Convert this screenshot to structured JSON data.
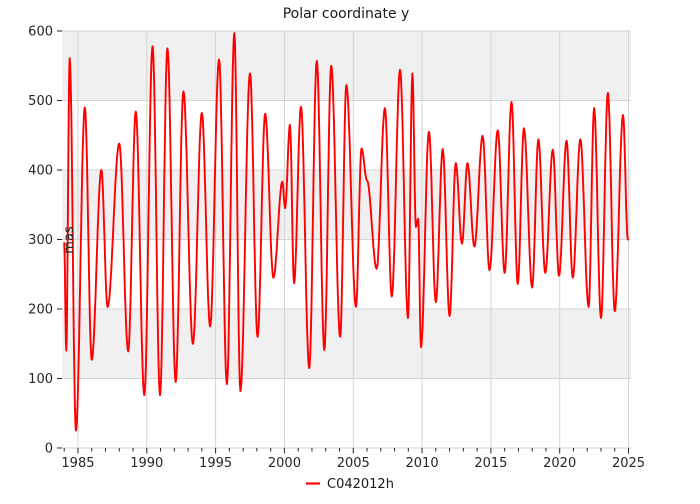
{
  "title": "Polar coordinate y",
  "colors": {
    "line": "#ff0000",
    "band": "#f0f0f0",
    "grid": "#d4d4d4",
    "tick": "#262626",
    "text": "#262626",
    "plot_bg": "#ffffff",
    "page_bg": "#ffffff"
  },
  "legend": {
    "label": "C042012h",
    "position": "bottom-center"
  },
  "chart_data": {
    "type": "line",
    "title": "Polar coordinate y",
    "xlabel": "",
    "ylabel": "mas",
    "xlim": [
      1983.84,
      2025.18
    ],
    "ylim": [
      0,
      600
    ],
    "xticks": [
      1985,
      1990,
      1995,
      2000,
      2005,
      2010,
      2015,
      2020,
      2025
    ],
    "xtick_minor_step": 1,
    "yticks": [
      0,
      100,
      200,
      300,
      400,
      500,
      600
    ],
    "grid": true,
    "background_bands": [
      [
        100,
        200
      ],
      [
        300,
        400
      ],
      [
        500,
        600
      ]
    ],
    "legend_position": "bottom-center",
    "series": [
      {
        "name": "C042012h",
        "color": "#ff0000",
        "line_width": 1.9,
        "interpolation": "cosine-between-extrema",
        "extrema": [
          [
            1984.0,
            295
          ],
          [
            1984.15,
            140
          ],
          [
            1984.4,
            561
          ],
          [
            1984.85,
            25
          ],
          [
            1985.5,
            490
          ],
          [
            1986.0,
            127
          ],
          [
            1986.7,
            400
          ],
          [
            1987.15,
            203
          ],
          [
            1988.0,
            438
          ],
          [
            1988.65,
            139
          ],
          [
            1989.2,
            484
          ],
          [
            1989.82,
            76
          ],
          [
            1990.42,
            578
          ],
          [
            1990.96,
            76
          ],
          [
            1991.5,
            575
          ],
          [
            1992.1,
            95
          ],
          [
            1992.66,
            513
          ],
          [
            1993.35,
            150
          ],
          [
            1994.0,
            482
          ],
          [
            1994.6,
            175
          ],
          [
            1995.25,
            559
          ],
          [
            1995.82,
            92
          ],
          [
            1996.36,
            597
          ],
          [
            1996.8,
            82
          ],
          [
            1997.5,
            539
          ],
          [
            1998.05,
            160
          ],
          [
            1998.6,
            481
          ],
          [
            1999.2,
            245
          ],
          [
            1999.85,
            383
          ],
          [
            2000.05,
            345
          ],
          [
            2000.4,
            465
          ],
          [
            2000.7,
            237
          ],
          [
            2001.2,
            491
          ],
          [
            2001.8,
            115
          ],
          [
            2002.35,
            557
          ],
          [
            2002.9,
            141
          ],
          [
            2003.4,
            550
          ],
          [
            2004.05,
            160
          ],
          [
            2004.5,
            522
          ],
          [
            2005.2,
            203
          ],
          [
            2005.6,
            431
          ],
          [
            2006.0,
            385
          ],
          [
            2006.7,
            258
          ],
          [
            2007.3,
            489
          ],
          [
            2007.8,
            218
          ],
          [
            2008.4,
            544
          ],
          [
            2008.98,
            187
          ],
          [
            2009.3,
            539
          ],
          [
            2009.55,
            318
          ],
          [
            2009.72,
            330
          ],
          [
            2009.92,
            145
          ],
          [
            2010.5,
            455
          ],
          [
            2011.0,
            210
          ],
          [
            2011.5,
            430
          ],
          [
            2012.0,
            190
          ],
          [
            2012.45,
            410
          ],
          [
            2012.9,
            294
          ],
          [
            2013.3,
            410
          ],
          [
            2013.8,
            290
          ],
          [
            2014.4,
            449
          ],
          [
            2014.9,
            256
          ],
          [
            2015.5,
            457
          ],
          [
            2016.0,
            252
          ],
          [
            2016.5,
            498
          ],
          [
            2016.95,
            236
          ],
          [
            2017.4,
            460
          ],
          [
            2018.0,
            231
          ],
          [
            2018.45,
            444
          ],
          [
            2018.95,
            252
          ],
          [
            2019.5,
            429
          ],
          [
            2019.95,
            248
          ],
          [
            2020.5,
            442
          ],
          [
            2020.95,
            245
          ],
          [
            2021.5,
            444
          ],
          [
            2022.1,
            203
          ],
          [
            2022.5,
            489
          ],
          [
            2023.0,
            187
          ],
          [
            2023.5,
            511
          ],
          [
            2024.0,
            197
          ],
          [
            2024.6,
            479
          ],
          [
            2024.95,
            300
          ]
        ]
      }
    ]
  }
}
